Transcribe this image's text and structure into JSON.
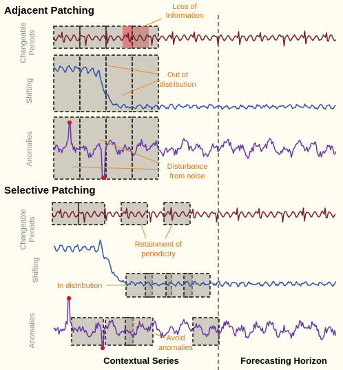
{
  "sections": {
    "adjacent": {
      "title": "Adjacent Patching"
    },
    "selective": {
      "title": "Selective Patching"
    }
  },
  "rows": {
    "changeable_a": "Changeable",
    "changeable_b": "Periods",
    "shifting": "Shifting",
    "anomalies": "Anomalies"
  },
  "annotations": {
    "loss_1": "Loss of",
    "loss_2": "Information",
    "ood_1": "Out of",
    "ood_2": "distribution",
    "noise_1": "Disturbance",
    "noise_2": "from noise",
    "retain_1": "Retainment of",
    "retain_2": "periodicity",
    "in_dist": "In distribution",
    "avoid_1": "Avoid",
    "avoid_2": "anomalies"
  },
  "footer": {
    "context": "Contextual Series",
    "forecast": "Forecasting Horizon"
  },
  "colors": {
    "periodic": "#7a1e2e",
    "shifting": "#2d55a0",
    "anomaly": "#6a35a8",
    "annotation": "#d07a1a",
    "patch_fill": "#a39b91",
    "loss_fill": "#e06a6a",
    "spike_dot": "#c0203a"
  }
}
